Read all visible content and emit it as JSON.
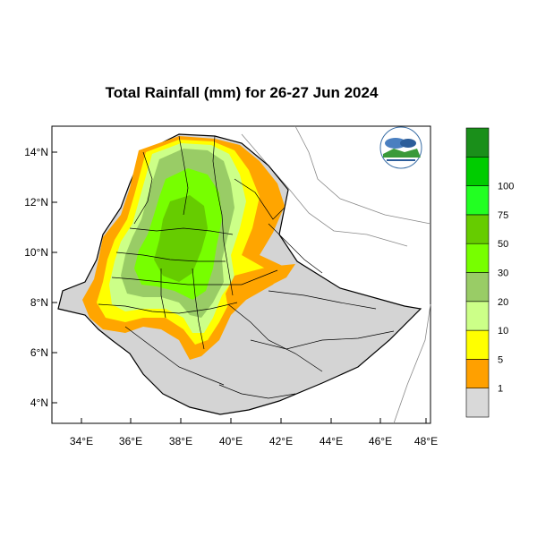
{
  "title": "Total Rainfall (mm) for 26-27 Jun 2024",
  "y_axis_ticks": [
    "14°N",
    "12°N",
    "10°N",
    "8°N",
    "6°N",
    "4°N"
  ],
  "x_axis_ticks": [
    "34°E",
    "36°E",
    "38°E",
    "40°E",
    "42°E",
    "44°E",
    "46°E",
    "48°E"
  ],
  "legend": {
    "levels": [
      "1",
      "5",
      "10",
      "20",
      "30",
      "50",
      "75",
      "100"
    ],
    "colors": [
      "#d9d9d9",
      "#ffa000",
      "#ffff00",
      "#ccff88",
      "#99cc66",
      "#77ff00",
      "#66cc00",
      "#22ff22",
      "#00cc00",
      "#1a8f1a"
    ]
  },
  "logo": {
    "present": true
  }
}
